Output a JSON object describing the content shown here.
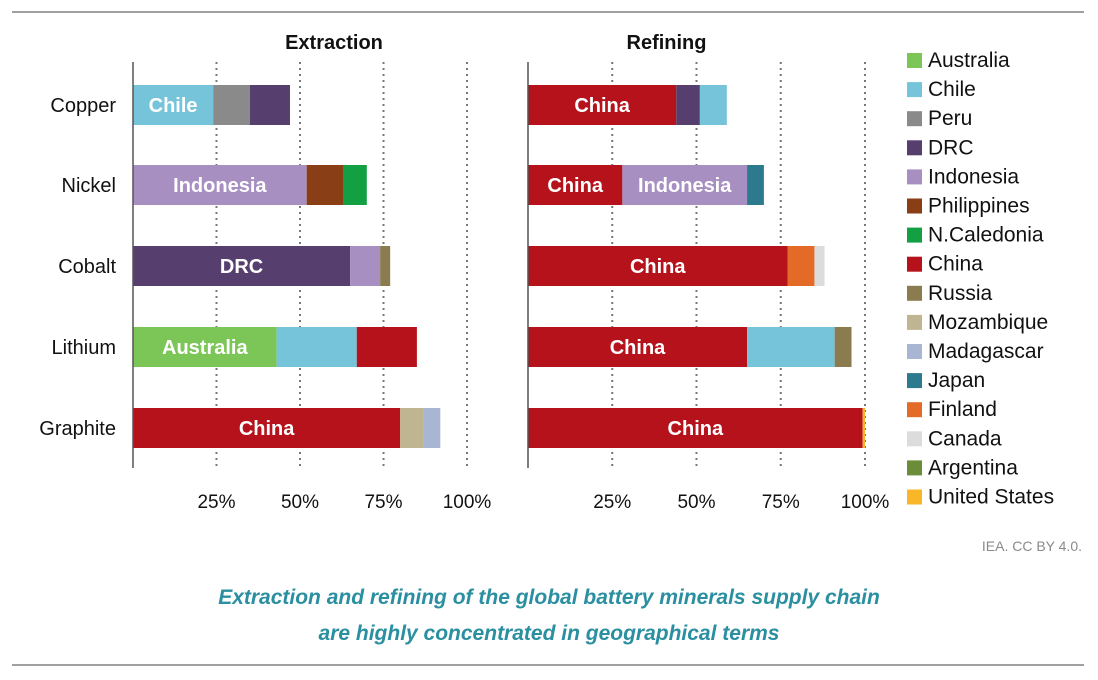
{
  "chart_data": [
    {
      "type": "bar",
      "orientation": "horizontal",
      "stacked": true,
      "title": "Extraction",
      "categories": [
        "Copper",
        "Nickel",
        "Cobalt",
        "Lithium",
        "Graphite"
      ],
      "xticks": [
        "25%",
        "50%",
        "75%",
        "100%"
      ],
      "xlim": [
        0,
        100
      ],
      "grid": "vertical dotted",
      "stacks": [
        [
          {
            "country": "Chile",
            "value": 24,
            "label": "Chile"
          },
          {
            "country": "Peru",
            "value": 11
          },
          {
            "country": "DRC",
            "value": 12
          }
        ],
        [
          {
            "country": "Indonesia",
            "value": 52,
            "label": "Indonesia"
          },
          {
            "country": "Philippines",
            "value": 11
          },
          {
            "country": "N.Caledonia",
            "value": 7
          }
        ],
        [
          {
            "country": "DRC",
            "value": 65,
            "label": "DRC"
          },
          {
            "country": "Indonesia",
            "value": 9
          },
          {
            "country": "Russia",
            "value": 3
          }
        ],
        [
          {
            "country": "Australia",
            "value": 43,
            "label": "Australia"
          },
          {
            "country": "Chile",
            "value": 24
          },
          {
            "country": "China",
            "value": 18
          }
        ],
        [
          {
            "country": "China",
            "value": 80,
            "label": "China"
          },
          {
            "country": "Mozambique",
            "value": 7
          },
          {
            "country": "Madagascar",
            "value": 5
          }
        ]
      ]
    },
    {
      "type": "bar",
      "orientation": "horizontal",
      "stacked": true,
      "title": "Refining",
      "categories": [
        "Copper",
        "Nickel",
        "Cobalt",
        "Lithium",
        "Graphite"
      ],
      "xticks": [
        "25%",
        "50%",
        "75%",
        "100%"
      ],
      "xlim": [
        0,
        100
      ],
      "grid": "vertical dotted",
      "stacks": [
        [
          {
            "country": "China",
            "value": 44,
            "label": "China"
          },
          {
            "country": "DRC",
            "value": 7
          },
          {
            "country": "Chile",
            "value": 8
          }
        ],
        [
          {
            "country": "China",
            "value": 28,
            "label": "China"
          },
          {
            "country": "Indonesia",
            "value": 37,
            "label": "Indonesia"
          },
          {
            "country": "Japan",
            "value": 5
          }
        ],
        [
          {
            "country": "China",
            "value": 77,
            "label": "China"
          },
          {
            "country": "Finland",
            "value": 8
          },
          {
            "country": "Canada",
            "value": 3
          }
        ],
        [
          {
            "country": "China",
            "value": 65,
            "label": "China"
          },
          {
            "country": "Chile",
            "value": 26
          },
          {
            "country": "Russia",
            "value": 5
          }
        ],
        [
          {
            "country": "China",
            "value": 99.3,
            "label": "China"
          },
          {
            "country": "United States",
            "value": 0.7
          }
        ]
      ]
    }
  ],
  "legend": {
    "placement": "right",
    "items": [
      {
        "name": "Australia",
        "color": "#7cc657"
      },
      {
        "name": "Chile",
        "color": "#75c4d9"
      },
      {
        "name": "Peru",
        "color": "#8a8a8a"
      },
      {
        "name": "DRC",
        "color": "#563f6e"
      },
      {
        "name": "Indonesia",
        "color": "#a78fc2"
      },
      {
        "name": "Philippines",
        "color": "#8a3e15"
      },
      {
        "name": "N.Caledonia",
        "color": "#12a043"
      },
      {
        "name": "China",
        "color": "#b5121b"
      },
      {
        "name": "Russia",
        "color": "#8a7c4e"
      },
      {
        "name": "Mozambique",
        "color": "#bfb591"
      },
      {
        "name": "Madagascar",
        "color": "#a8b6d4"
      },
      {
        "name": "Japan",
        "color": "#2d7a8f"
      },
      {
        "name": "Finland",
        "color": "#e36b27"
      },
      {
        "name": "Canada",
        "color": "#dcdcdc"
      },
      {
        "name": "Argentina",
        "color": "#6b8d3a"
      },
      {
        "name": "United States",
        "color": "#f8b628"
      }
    ]
  },
  "credit": "IEA. CC BY 4.0.",
  "caption": {
    "line1": "Extraction and refining of the global battery minerals supply chain",
    "line2": "are highly concentrated in geographical terms"
  }
}
